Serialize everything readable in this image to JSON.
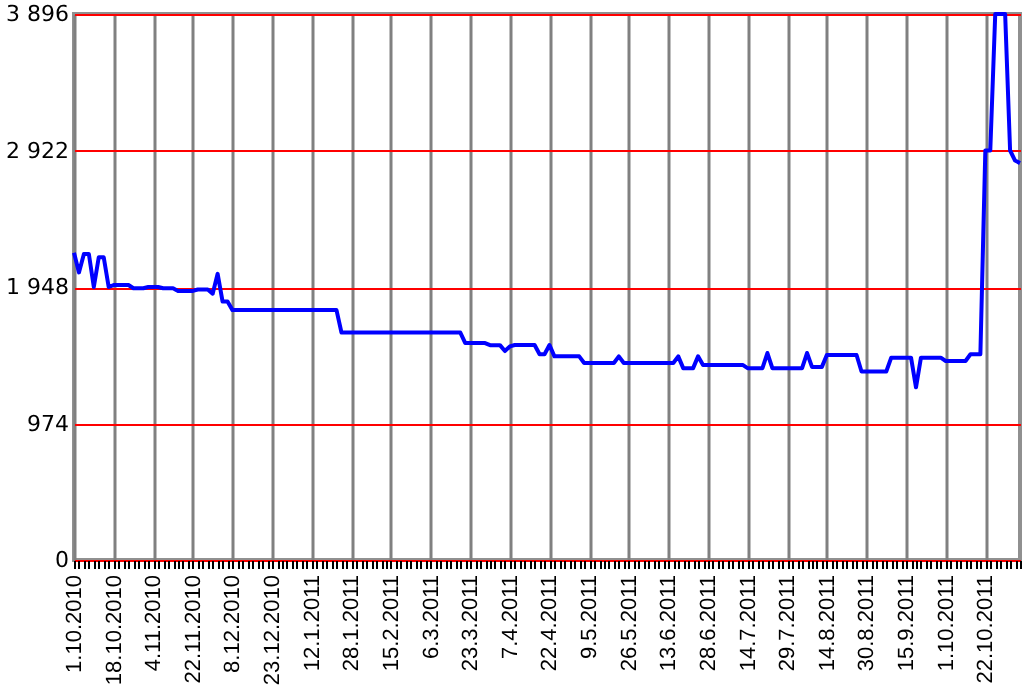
{
  "chart_data": {
    "type": "line",
    "color": "#0000ff",
    "grid": true,
    "marker": "none",
    "ylim": [
      0,
      3896
    ],
    "yticks": [
      0,
      974,
      {
        "value": 1948,
        "label": "1 948"
      },
      {
        "value": 2922,
        "label": "2 922"
      },
      {
        "value": 3896,
        "label": "3 896"
      }
    ],
    "categories": [
      "1.10.2010",
      null,
      null,
      null,
      null,
      null,
      null,
      null,
      "18.10.2010",
      null,
      null,
      null,
      null,
      null,
      null,
      null,
      "4.11.2010",
      null,
      null,
      null,
      null,
      null,
      null,
      null,
      "22.11.2010",
      null,
      null,
      null,
      null,
      null,
      null,
      null,
      "8.12.2010",
      null,
      null,
      null,
      null,
      null,
      null,
      null,
      "23.12.2010",
      null,
      null,
      null,
      null,
      null,
      null,
      null,
      "12.1.2011",
      null,
      null,
      null,
      null,
      null,
      null,
      null,
      "28.1.2011",
      null,
      null,
      null,
      null,
      null,
      null,
      null,
      "15.2.2011",
      null,
      null,
      null,
      null,
      null,
      null,
      null,
      "6.3.2011",
      null,
      null,
      null,
      null,
      null,
      null,
      null,
      "23.3.2011",
      null,
      null,
      null,
      null,
      null,
      null,
      null,
      "7.4.2011",
      null,
      null,
      null,
      null,
      null,
      null,
      null,
      "22.4.2011",
      null,
      null,
      null,
      null,
      null,
      null,
      null,
      "9.5.2011",
      null,
      null,
      null,
      null,
      null,
      null,
      null,
      "26.5.2011",
      null,
      null,
      null,
      null,
      null,
      null,
      null,
      "13.6.2011",
      null,
      null,
      null,
      null,
      null,
      null,
      null,
      "28.6.2011",
      null,
      null,
      null,
      null,
      null,
      null,
      null,
      "14.7.2011",
      null,
      null,
      null,
      null,
      null,
      null,
      null,
      "29.7.2011",
      null,
      null,
      null,
      null,
      null,
      null,
      null,
      "14.8.2011",
      null,
      null,
      null,
      null,
      null,
      null,
      null,
      "30.8.2011",
      null,
      null,
      null,
      null,
      null,
      null,
      null,
      "15.9.2011",
      null,
      null,
      null,
      null,
      null,
      null,
      null,
      "1.10.2011",
      null,
      null,
      null,
      null,
      null,
      null,
      null,
      "22.10.2011",
      null,
      null,
      null,
      null,
      null,
      null,
      null
    ],
    "values": [
      2193,
      2052,
      2183,
      2183,
      1948,
      2160,
      2160,
      1948,
      1962,
      1962,
      1962,
      1962,
      1939,
      1939,
      1939,
      1948,
      1948,
      1948,
      1939,
      1939,
      1939,
      1920,
      1920,
      1920,
      1920,
      1930,
      1930,
      1930,
      1900,
      2042,
      1844,
      1844,
      1783,
      1783,
      1783,
      1783,
      1783,
      1783,
      1783,
      1783,
      1783,
      1783,
      1783,
      1783,
      1783,
      1783,
      1783,
      1783,
      1783,
      1783,
      1783,
      1783,
      1783,
      1783,
      1623,
      1623,
      1623,
      1623,
      1623,
      1623,
      1623,
      1623,
      1623,
      1623,
      1623,
      1623,
      1623,
      1623,
      1623,
      1623,
      1623,
      1623,
      1623,
      1623,
      1623,
      1623,
      1623,
      1623,
      1623,
      1548,
      1548,
      1548,
      1548,
      1548,
      1533,
      1533,
      1533,
      1491,
      1524,
      1534,
      1534,
      1534,
      1534,
      1534,
      1468,
      1468,
      1534,
      1453,
      1453,
      1453,
      1453,
      1453,
      1453,
      1406,
      1406,
      1406,
      1406,
      1406,
      1406,
      1406,
      1453,
      1406,
      1406,
      1406,
      1406,
      1406,
      1406,
      1406,
      1406,
      1406,
      1406,
      1406,
      1453,
      1369,
      1369,
      1369,
      1453,
      1392,
      1392,
      1392,
      1392,
      1392,
      1392,
      1392,
      1392,
      1392,
      1369,
      1369,
      1369,
      1369,
      1477,
      1369,
      1369,
      1369,
      1369,
      1369,
      1369,
      1369,
      1477,
      1378,
      1378,
      1378,
      1463,
      1463,
      1463,
      1463,
      1463,
      1463,
      1463,
      1345,
      1345,
      1345,
      1345,
      1345,
      1345,
      1444,
      1444,
      1444,
      1444,
      1444,
      1232,
      1444,
      1444,
      1444,
      1444,
      1444,
      1420,
      1420,
      1420,
      1420,
      1420,
      1468,
      1468,
      1468,
      2922,
      2922,
      3896,
      3896,
      3896,
      2922,
      2850,
      2832
    ]
  }
}
